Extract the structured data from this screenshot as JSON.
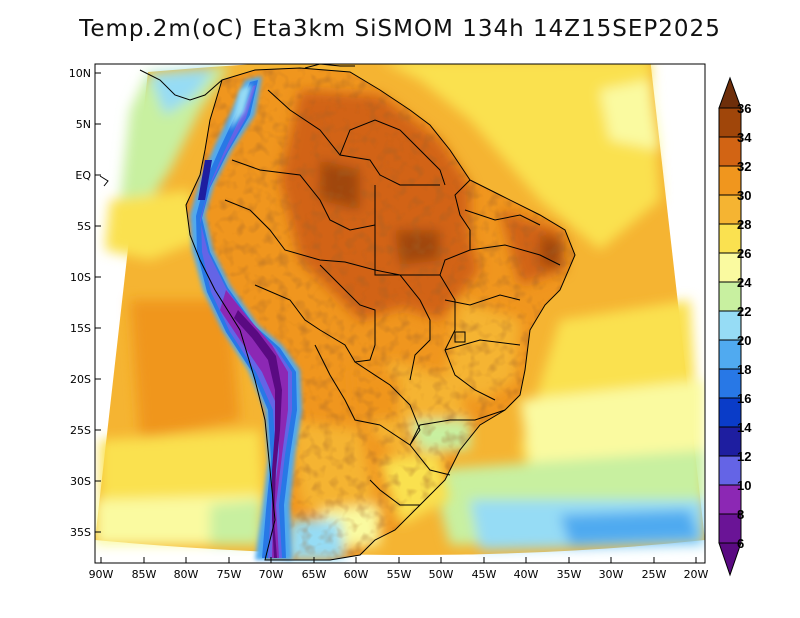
{
  "title": "Temp.2m(oC) Eta3km SiSMOM 134h 14Z15SEP2025",
  "map": {
    "region": "South America",
    "latitude_labels": [
      "10N",
      "5N",
      "EQ",
      "5S",
      "10S",
      "15S",
      "20S",
      "25S",
      "30S",
      "35S"
    ],
    "longitude_labels": [
      "90W",
      "85W",
      "80W",
      "75W",
      "70W",
      "65W",
      "60W",
      "55W",
      "50W",
      "45W",
      "40W",
      "35W",
      "30W",
      "25W",
      "20W"
    ]
  },
  "colorbar": {
    "labels": [
      "6",
      "8",
      "10",
      "12",
      "14",
      "16",
      "18",
      "20",
      "22",
      "24",
      "26",
      "28",
      "30",
      "32",
      "34",
      "36"
    ],
    "bins": [
      {
        "range": "<6",
        "color": "#5a0a82"
      },
      {
        "range": "6-8",
        "color": "#6a1496"
      },
      {
        "range": "8-10",
        "color": "#8c28b4"
      },
      {
        "range": "10-12",
        "color": "#6464e6"
      },
      {
        "range": "12-14",
        "color": "#1e1ea0"
      },
      {
        "range": "14-16",
        "color": "#0a3cc8"
      },
      {
        "range": "16-18",
        "color": "#2878e6"
      },
      {
        "range": "18-20",
        "color": "#50aaf0"
      },
      {
        "range": "20-22",
        "color": "#96dcf5"
      },
      {
        "range": "22-24",
        "color": "#c8f0a0"
      },
      {
        "range": "24-26",
        "color": "#fafaa0"
      },
      {
        "range": "26-28",
        "color": "#fae150"
      },
      {
        "range": "28-30",
        "color": "#f5b432"
      },
      {
        "range": "30-32",
        "color": "#f0961e"
      },
      {
        "range": "32-34",
        "color": "#d26414"
      },
      {
        "range": "34-36",
        "color": "#a0460a"
      },
      {
        "range": ">36",
        "color": "#6e2e0a"
      }
    ]
  }
}
